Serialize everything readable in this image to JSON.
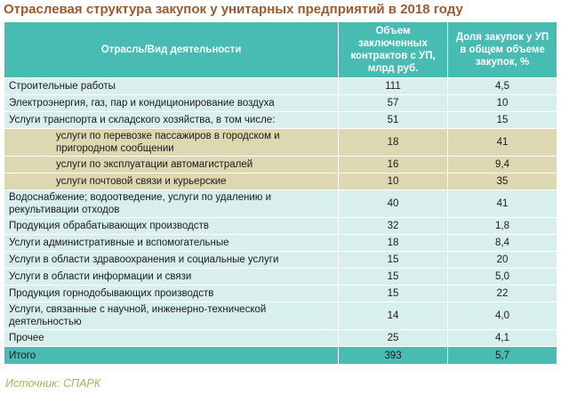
{
  "title": "Отраслевая структура закупок у унитарных предприятий в 2018 году",
  "table": {
    "header": [
      "Отрасль/Вид деятельности",
      "Объем заключенных контрактов с УП, млрд руб.",
      "Доля закупок у УП в общем объеме закупок, %"
    ],
    "rows": [
      {
        "cells": [
          "Строительные работы",
          "111",
          "4,5"
        ]
      },
      {
        "cells": [
          "Электроэнергия, газ, пар и кондиционирование воздуха",
          "57",
          "10"
        ]
      },
      {
        "cells": [
          "Услуги транспорта и складского хозяйства, в том числе:",
          "51",
          "15"
        ],
        "subrows": [
          [
            "услуги по перевозке пассажиров в городском и пригородном сообщении",
            "18",
            "41"
          ],
          [
            "услуги по эксплуатации автомагистралей",
            "16",
            "9,4"
          ],
          [
            "услуги почтовой связи и курьерские",
            "10",
            "35"
          ]
        ]
      },
      {
        "cells": [
          "Водоснабжение; водоотведение, услуги по удалению и рекультивации отходов",
          "40",
          "41"
        ]
      },
      {
        "cells": [
          "Продукция обрабатывающих производств",
          "32",
          "1,8"
        ]
      },
      {
        "cells": [
          "Услуги административные и вспомогательные",
          "18",
          "8,4"
        ]
      },
      {
        "cells": [
          "Услуги в области здравоохранения и социальные услуги",
          "15",
          "20"
        ]
      },
      {
        "cells": [
          "Услуги в области информации и связи",
          "15",
          "5,0"
        ]
      },
      {
        "cells": [
          "Продукция горнодобывающих производств",
          "15",
          "22"
        ]
      },
      {
        "cells": [
          "Услуги, связанные с научной, инженерно-технической деятельностью",
          "14",
          "4,0"
        ]
      },
      {
        "cells": [
          "Прочее",
          "25",
          "4,1"
        ]
      }
    ],
    "total": [
      "Итого",
      "393",
      "5,7"
    ]
  },
  "source": "Источник: СПАРК"
}
